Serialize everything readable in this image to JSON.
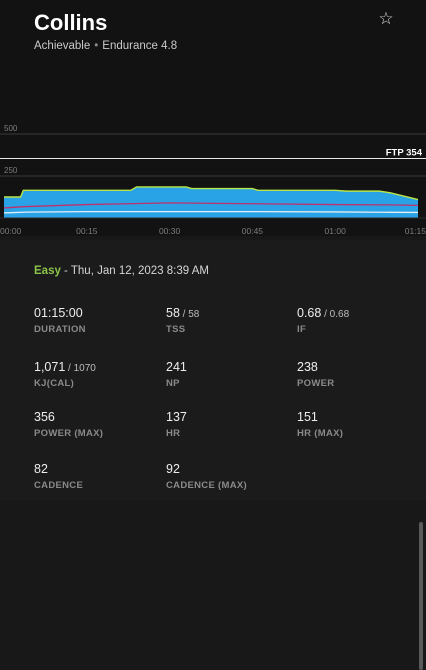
{
  "header": {
    "title": "Collins",
    "difficulty": "Achievable",
    "focus": "Endurance 4.8",
    "star_icon": "star-outline-icon"
  },
  "chart_data": {
    "type": "area",
    "y_ticks": [
      "500",
      "250"
    ],
    "y_tick_values": [
      500,
      250
    ],
    "ylim": [
      0,
      600
    ],
    "xlim": [
      0,
      75
    ],
    "x_ticks": [
      "00:00",
      "00:15",
      "00:30",
      "00:45",
      "01:00",
      "01:15"
    ],
    "x_tick_values": [
      0,
      15,
      30,
      45,
      60,
      75
    ],
    "ftp_label": "FTP 354",
    "ftp_value": 354,
    "series": [
      {
        "color": "#29a3e6",
        "x": [
          0,
          3,
          3.5,
          23,
          24,
          33,
          34,
          45,
          46,
          60,
          62,
          68,
          70,
          75
        ],
        "values": [
          125,
          125,
          165,
          165,
          185,
          185,
          175,
          175,
          165,
          165,
          160,
          160,
          150,
          110
        ]
      },
      {
        "color": "#c0306a",
        "x": [
          0,
          4,
          15,
          30,
          45,
          60,
          70,
          75
        ],
        "values": [
          60,
          68,
          80,
          90,
          85,
          80,
          78,
          75
        ]
      },
      {
        "color": "#e4eef3",
        "x": [
          0,
          4,
          15,
          30,
          45,
          60,
          70,
          75
        ],
        "values": [
          30,
          35,
          38,
          38,
          38,
          36,
          34,
          33
        ]
      }
    ],
    "colors": {
      "power_fill": "#29a3e6",
      "power_edge": "#b9e346",
      "heart_rate": "#c0306a",
      "cadence": "#e4eef3"
    }
  },
  "workout": {
    "level": "Easy",
    "date": " - Thu, Jan 12, 2023 8:39 AM"
  },
  "stats": [
    {
      "value": "01:15:00",
      "sub": "",
      "label": "DURATION"
    },
    {
      "value": "58",
      "sub": " / 58",
      "label": "TSS"
    },
    {
      "value": "0.68",
      "sub": " / 0.68",
      "label": "IF"
    },
    {
      "value": "1,071",
      "sub": " / 1070",
      "label": "KJ(CAL)"
    },
    {
      "value": "241",
      "sub": "",
      "label": "NP"
    },
    {
      "value": "238",
      "sub": "",
      "label": "POWER"
    },
    {
      "value": "356",
      "sub": "",
      "label": "POWER (MAX)"
    },
    {
      "value": "137",
      "sub": "",
      "label": "HR"
    },
    {
      "value": "151",
      "sub": "",
      "label": "HR (MAX)"
    },
    {
      "value": "82",
      "sub": "",
      "label": "CADENCE"
    },
    {
      "value": "92",
      "sub": "",
      "label": "CADENCE (MAX)"
    }
  ],
  "colors": {
    "level_easy": "#8bc34a",
    "background": "#181818"
  }
}
